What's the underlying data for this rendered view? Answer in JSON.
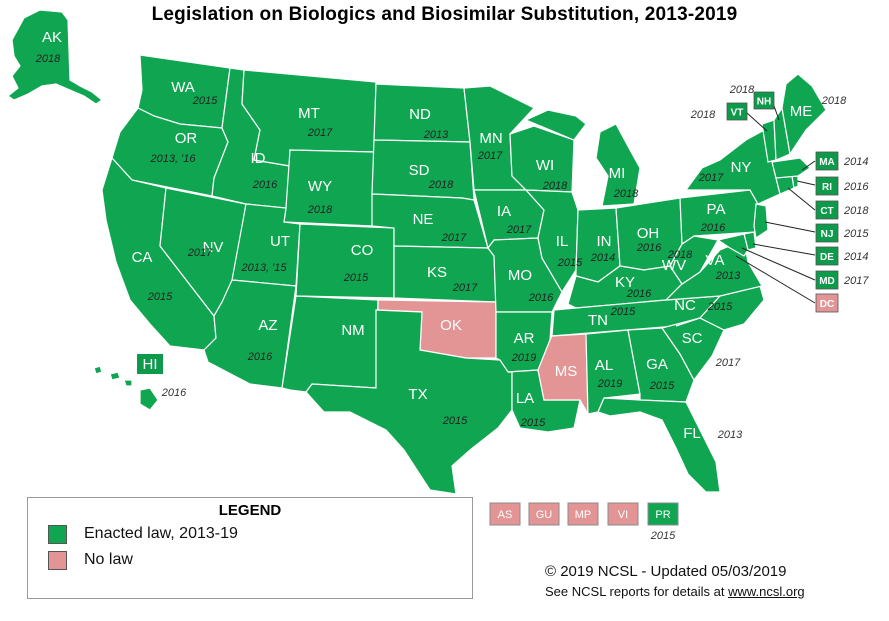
{
  "title": "Legislation on Biologics and Biosimilar Substitution, 2013-2019",
  "colors": {
    "enacted": "#10a651",
    "no_law": "#e39595",
    "box_enacted": "#0d9a4a"
  },
  "states": {
    "AK": {
      "abbr": "AK",
      "year": "2018",
      "status": "enacted"
    },
    "WA": {
      "abbr": "WA",
      "year": "2015",
      "status": "enacted"
    },
    "OR": {
      "abbr": "OR",
      "year": "2013, '16",
      "status": "enacted"
    },
    "CA": {
      "abbr": "CA",
      "year": "2015",
      "status": "enacted"
    },
    "NV": {
      "abbr": "NV",
      "year": "2017",
      "status": "enacted"
    },
    "ID": {
      "abbr": "ID",
      "year": "2016",
      "status": "enacted"
    },
    "MT": {
      "abbr": "MT",
      "year": "2017",
      "status": "enacted"
    },
    "WY": {
      "abbr": "WY",
      "year": "2018",
      "status": "enacted"
    },
    "UT": {
      "abbr": "UT",
      "year": "2013, '15",
      "status": "enacted"
    },
    "AZ": {
      "abbr": "AZ",
      "year": "2016",
      "status": "enacted"
    },
    "CO": {
      "abbr": "CO",
      "year": "2015",
      "status": "enacted"
    },
    "NM": {
      "abbr": "NM",
      "year": "",
      "status": "enacted"
    },
    "ND": {
      "abbr": "ND",
      "year": "2013",
      "status": "enacted"
    },
    "SD": {
      "abbr": "SD",
      "year": "2018",
      "status": "enacted"
    },
    "NE": {
      "abbr": "NE",
      "year": "2017",
      "status": "enacted"
    },
    "KS": {
      "abbr": "KS",
      "year": "2017",
      "status": "enacted"
    },
    "OK": {
      "abbr": "OK",
      "year": "",
      "status": "no_law"
    },
    "TX": {
      "abbr": "TX",
      "year": "2015",
      "status": "enacted"
    },
    "MN": {
      "abbr": "MN",
      "year": "2017",
      "status": "enacted"
    },
    "IA": {
      "abbr": "IA",
      "year": "2017",
      "status": "enacted"
    },
    "MO": {
      "abbr": "MO",
      "year": "2016",
      "status": "enacted"
    },
    "AR": {
      "abbr": "AR",
      "year": "2019",
      "status": "enacted"
    },
    "LA": {
      "abbr": "LA",
      "year": "2015",
      "status": "enacted"
    },
    "WI": {
      "abbr": "WI",
      "year": "2018",
      "status": "enacted"
    },
    "IL": {
      "abbr": "IL",
      "year": "2015",
      "status": "enacted"
    },
    "MI": {
      "abbr": "MI",
      "year": "2018",
      "status": "enacted"
    },
    "IN": {
      "abbr": "IN",
      "year": "2014",
      "status": "enacted"
    },
    "OH": {
      "abbr": "OH",
      "year": "2016",
      "status": "enacted"
    },
    "KY": {
      "abbr": "KY",
      "year": "2016",
      "status": "enacted"
    },
    "TN": {
      "abbr": "TN",
      "year": "2015",
      "status": "enacted"
    },
    "MS": {
      "abbr": "MS",
      "year": "",
      "status": "no_law"
    },
    "AL": {
      "abbr": "AL",
      "year": "2019",
      "status": "enacted"
    },
    "GA": {
      "abbr": "GA",
      "year": "2015",
      "status": "enacted"
    },
    "FL": {
      "abbr": "FL",
      "year": "2013",
      "status": "enacted"
    },
    "SC": {
      "abbr": "SC",
      "year": "2017",
      "status": "enacted"
    },
    "NC": {
      "abbr": "NC",
      "year": "2015",
      "status": "enacted"
    },
    "VA": {
      "abbr": "VA",
      "year": "2013",
      "status": "enacted"
    },
    "WV": {
      "abbr": "WV",
      "year": "2018",
      "status": "enacted"
    },
    "PA": {
      "abbr": "PA",
      "year": "2016",
      "status": "enacted"
    },
    "NY": {
      "abbr": "NY",
      "year": "2017",
      "status": "enacted"
    },
    "ME": {
      "abbr": "ME",
      "year": "2018",
      "status": "enacted"
    },
    "VT": {
      "abbr": "VT",
      "year": "2018",
      "status": "enacted"
    },
    "NH": {
      "abbr": "NH",
      "year": "2018",
      "status": "enacted"
    },
    "HI": {
      "abbr": "HI",
      "year": "2016",
      "status": "enacted"
    }
  },
  "small_states": [
    {
      "abbr": "MA",
      "year": "2014",
      "status": "enacted"
    },
    {
      "abbr": "RI",
      "year": "2016",
      "status": "enacted"
    },
    {
      "abbr": "CT",
      "year": "2018",
      "status": "enacted"
    },
    {
      "abbr": "NJ",
      "year": "2015",
      "status": "enacted"
    },
    {
      "abbr": "DE",
      "year": "2014",
      "status": "enacted"
    },
    {
      "abbr": "MD",
      "year": "2017",
      "status": "enacted"
    },
    {
      "abbr": "DC",
      "year": "",
      "status": "no_law"
    }
  ],
  "territories": [
    {
      "abbr": "AS",
      "year": "",
      "status": "no_law"
    },
    {
      "abbr": "GU",
      "year": "",
      "status": "no_law"
    },
    {
      "abbr": "MP",
      "year": "",
      "status": "no_law"
    },
    {
      "abbr": "VI",
      "year": "",
      "status": "no_law"
    },
    {
      "abbr": "PR",
      "year": "2015",
      "status": "enacted"
    }
  ],
  "legend": {
    "title": "LEGEND",
    "items": [
      {
        "label": "Enacted law, 2013-19",
        "color": "#10a651"
      },
      {
        "label": "No law",
        "color": "#e39595"
      }
    ]
  },
  "footer": {
    "copyright": "© 2019 NCSL - Updated 05/03/2019",
    "note_prefix": "See NCSL reports for details at ",
    "note_link": "www.ncsl.org"
  }
}
